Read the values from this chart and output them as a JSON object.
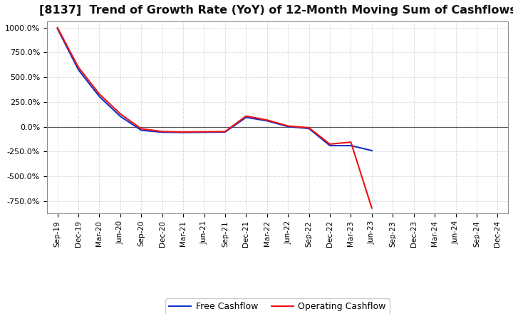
{
  "title": "[8137]  Trend of Growth Rate (YoY) of 12-Month Moving Sum of Cashflows",
  "title_fontsize": 11.5,
  "background_color": "#ffffff",
  "grid_color": "#aaaaaa",
  "line_op_color": "#ee1111",
  "line_free_color": "#1133cc",
  "ylim": [
    -875,
    1062.5
  ],
  "yticks": [
    -750,
    -500,
    -250,
    0,
    250,
    500,
    750,
    1000
  ],
  "legend_labels": [
    "Operating Cashflow",
    "Free Cashflow"
  ],
  "x_labels": [
    "Sep-19",
    "Dec-19",
    "Mar-20",
    "Jun-20",
    "Sep-20",
    "Dec-20",
    "Mar-21",
    "Jun-21",
    "Sep-21",
    "Dec-21",
    "Mar-22",
    "Jun-22",
    "Sep-22",
    "Dec-22",
    "Mar-23",
    "Jun-23",
    "Sep-23",
    "Dec-23",
    "Mar-24",
    "Jun-24",
    "Sep-24",
    "Dec-24"
  ],
  "op_cashflow": [
    1000,
    600,
    330,
    130,
    -20,
    -48,
    -52,
    -50,
    -48,
    108,
    68,
    8,
    -10,
    -175,
    -155,
    -820,
    null,
    null,
    null,
    null,
    null,
    null
  ],
  "free_cashflow": [
    990,
    575,
    305,
    105,
    -35,
    -55,
    -57,
    -55,
    -53,
    95,
    60,
    2,
    -18,
    -190,
    -190,
    -240,
    null,
    null,
    null,
    null,
    null,
    null
  ]
}
